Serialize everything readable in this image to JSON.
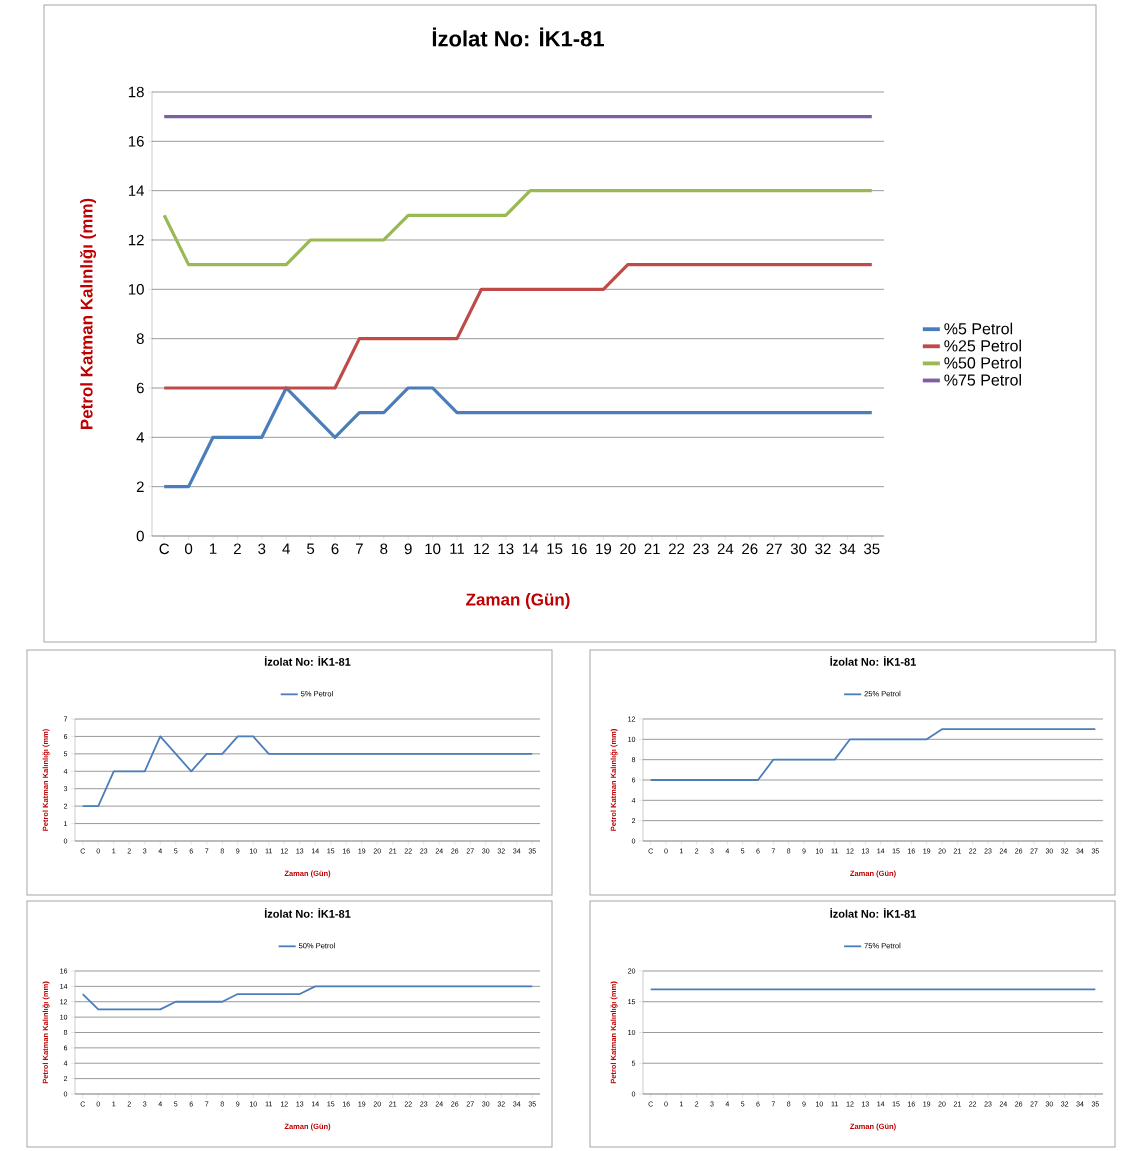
{
  "chart_data": [
    {
      "type": "line",
      "title": "İzolat No: İK1-81",
      "xlabel": "Zaman (Gün)",
      "ylabel": "Petrol Katman Kalınlığı (mm)",
      "categories": [
        "C",
        "0",
        "1",
        "2",
        "3",
        "4",
        "5",
        "6",
        "7",
        "8",
        "9",
        "10",
        "11",
        "12",
        "13",
        "14",
        "15",
        "16",
        "19",
        "20",
        "21",
        "22",
        "23",
        "24",
        "26",
        "27",
        "30",
        "32",
        "34",
        "35"
      ],
      "series": [
        {
          "name": "%5 Petrol",
          "color": "#4a7ebb",
          "values": [
            2,
            2,
            4,
            4,
            4,
            6,
            5,
            4,
            5,
            5,
            6,
            6,
            5,
            5,
            5,
            5,
            5,
            5,
            5,
            5,
            5,
            5,
            5,
            5,
            5,
            5,
            5,
            5,
            5,
            5
          ]
        },
        {
          "name": "%25 Petrol",
          "color": "#be4b48",
          "values": [
            6,
            6,
            6,
            6,
            6,
            6,
            6,
            6,
            8,
            8,
            8,
            8,
            8,
            10,
            10,
            10,
            10,
            10,
            10,
            11,
            11,
            11,
            11,
            11,
            11,
            11,
            11,
            11,
            11,
            11
          ]
        },
        {
          "name": "%50 Petrol",
          "color": "#98b954",
          "values": [
            13,
            11,
            11,
            11,
            11,
            11,
            12,
            12,
            12,
            12,
            13,
            13,
            13,
            13,
            13,
            14,
            14,
            14,
            14,
            14,
            14,
            14,
            14,
            14,
            14,
            14,
            14,
            14,
            14,
            14
          ]
        },
        {
          "name": "%75 Petrol",
          "color": "#7d60a0",
          "values": [
            17,
            17,
            17,
            17,
            17,
            17,
            17,
            17,
            17,
            17,
            17,
            17,
            17,
            17,
            17,
            17,
            17,
            17,
            17,
            17,
            17,
            17,
            17,
            17,
            17,
            17,
            17,
            17,
            17,
            17
          ]
        }
      ],
      "ylim": [
        0,
        18
      ],
      "yticks": [
        0,
        2,
        4,
        6,
        8,
        10,
        12,
        14,
        16,
        18
      ],
      "grid": "y",
      "legend": "right"
    },
    {
      "type": "line",
      "title": "İzolat No: İK1-81",
      "xlabel": "Zaman (Gün)",
      "ylabel": "Petrol Katman Kalınlığı (mm)",
      "categories": [
        "C",
        "0",
        "1",
        "2",
        "3",
        "4",
        "5",
        "6",
        "7",
        "8",
        "9",
        "10",
        "11",
        "12",
        "13",
        "14",
        "15",
        "16",
        "19",
        "20",
        "21",
        "22",
        "23",
        "24",
        "26",
        "27",
        "30",
        "32",
        "34",
        "35"
      ],
      "series": [
        {
          "name": "5% Petrol",
          "color": "#4a7ebb",
          "values": [
            2,
            2,
            4,
            4,
            4,
            6,
            5,
            4,
            5,
            5,
            6,
            6,
            5,
            5,
            5,
            5,
            5,
            5,
            5,
            5,
            5,
            5,
            5,
            5,
            5,
            5,
            5,
            5,
            5,
            5
          ]
        }
      ],
      "ylim": [
        0,
        7
      ],
      "yticks": [
        0,
        1,
        2,
        3,
        4,
        5,
        6,
        7
      ],
      "grid": "y",
      "legend": "top"
    },
    {
      "type": "line",
      "title": "İzolat No: İK1-81",
      "xlabel": "Zaman (Gün)",
      "ylabel": "Petrol Katman Kalınlığı (mm)",
      "categories": [
        "C",
        "0",
        "1",
        "2",
        "3",
        "4",
        "5",
        "6",
        "7",
        "8",
        "9",
        "10",
        "11",
        "12",
        "13",
        "14",
        "15",
        "16",
        "19",
        "20",
        "21",
        "22",
        "23",
        "24",
        "26",
        "27",
        "30",
        "32",
        "34",
        "35"
      ],
      "series": [
        {
          "name": "25% Petrol",
          "color": "#4a7ebb",
          "values": [
            6,
            6,
            6,
            6,
            6,
            6,
            6,
            6,
            8,
            8,
            8,
            8,
            8,
            10,
            10,
            10,
            10,
            10,
            10,
            11,
            11,
            11,
            11,
            11,
            11,
            11,
            11,
            11,
            11,
            11
          ]
        }
      ],
      "ylim": [
        0,
        12
      ],
      "yticks": [
        0,
        2,
        4,
        6,
        8,
        10,
        12
      ],
      "grid": "y",
      "legend": "top"
    },
    {
      "type": "line",
      "title": "İzolat No: İK1-81",
      "xlabel": "Zaman (Gün)",
      "ylabel": "Petrol Katman Kalınlığı (mm)",
      "categories": [
        "C",
        "0",
        "1",
        "2",
        "3",
        "4",
        "5",
        "6",
        "7",
        "8",
        "9",
        "10",
        "11",
        "12",
        "13",
        "14",
        "15",
        "16",
        "19",
        "20",
        "21",
        "22",
        "23",
        "24",
        "26",
        "27",
        "30",
        "32",
        "34",
        "35"
      ],
      "series": [
        {
          "name": "50% Petrol",
          "color": "#4a7ebb",
          "values": [
            13,
            11,
            11,
            11,
            11,
            11,
            12,
            12,
            12,
            12,
            13,
            13,
            13,
            13,
            13,
            14,
            14,
            14,
            14,
            14,
            14,
            14,
            14,
            14,
            14,
            14,
            14,
            14,
            14,
            14
          ]
        }
      ],
      "ylim": [
        0,
        16
      ],
      "yticks": [
        0,
        2,
        4,
        6,
        8,
        10,
        12,
        14,
        16
      ],
      "grid": "y",
      "legend": "top"
    },
    {
      "type": "line",
      "title": "İzolat No: İK1-81",
      "xlabel": "Zaman (Gün)",
      "ylabel": "Petrol Katman Kalınlığı (mm)",
      "categories": [
        "C",
        "0",
        "1",
        "2",
        "3",
        "4",
        "5",
        "6",
        "7",
        "8",
        "9",
        "10",
        "11",
        "12",
        "13",
        "14",
        "15",
        "16",
        "19",
        "20",
        "21",
        "22",
        "23",
        "24",
        "26",
        "27",
        "30",
        "32",
        "34",
        "35"
      ],
      "series": [
        {
          "name": "75% Petrol",
          "color": "#4a7ebb",
          "values": [
            17,
            17,
            17,
            17,
            17,
            17,
            17,
            17,
            17,
            17,
            17,
            17,
            17,
            17,
            17,
            17,
            17,
            17,
            17,
            17,
            17,
            17,
            17,
            17,
            17,
            17,
            17,
            17,
            17,
            17
          ]
        }
      ],
      "ylim": [
        0,
        20
      ],
      "yticks": [
        0,
        5,
        10,
        15,
        20
      ],
      "grid": "y",
      "legend": "top"
    }
  ]
}
